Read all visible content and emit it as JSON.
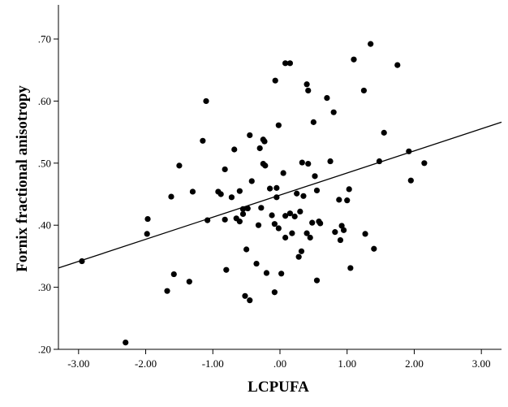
{
  "chart_data": {
    "type": "scatter",
    "title": "",
    "xlabel": "LCPUFA",
    "ylabel": "Fornix fractional anisotropy",
    "xlim": [
      -3.3,
      3.3
    ],
    "ylim": [
      0.2,
      0.755
    ],
    "x_ticks": [
      -3,
      -2,
      -1,
      0,
      1,
      2,
      3
    ],
    "x_tick_labels": [
      "-3.00",
      "-2.00",
      "-1.00",
      ".00",
      "1.00",
      "2.00",
      "3.00"
    ],
    "y_ticks": [
      0.2,
      0.3,
      0.4,
      0.5,
      0.6,
      0.7
    ],
    "y_tick_labels": [
      ".20",
      ".30",
      ".40",
      ".50",
      ".60",
      ".70"
    ],
    "grid": false,
    "legend": "none",
    "point_color": "#000000",
    "fit_line": {
      "type": "linear",
      "x": [
        -3.3,
        3.3
      ],
      "y": [
        0.331,
        0.566
      ]
    },
    "points": [
      [
        -2.95,
        0.342
      ],
      [
        -2.3,
        0.211
      ],
      [
        -1.97,
        0.41
      ],
      [
        -1.98,
        0.386
      ],
      [
        -1.68,
        0.294
      ],
      [
        -1.62,
        0.446
      ],
      [
        -1.58,
        0.321
      ],
      [
        -1.5,
        0.496
      ],
      [
        -1.35,
        0.309
      ],
      [
        -1.3,
        0.454
      ],
      [
        -1.15,
        0.536
      ],
      [
        -1.1,
        0.6
      ],
      [
        -1.08,
        0.408
      ],
      [
        -0.92,
        0.454
      ],
      [
        -0.88,
        0.45
      ],
      [
        -0.82,
        0.49
      ],
      [
        -0.82,
        0.409
      ],
      [
        -0.8,
        0.328
      ],
      [
        -0.72,
        0.445
      ],
      [
        -0.68,
        0.522
      ],
      [
        -0.65,
        0.411
      ],
      [
        -0.6,
        0.406
      ],
      [
        -0.6,
        0.455
      ],
      [
        -0.55,
        0.418
      ],
      [
        -0.55,
        0.426
      ],
      [
        -0.52,
        0.286
      ],
      [
        -0.5,
        0.361
      ],
      [
        -0.48,
        0.427
      ],
      [
        -0.45,
        0.279
      ],
      [
        -0.45,
        0.545
      ],
      [
        -0.42,
        0.471
      ],
      [
        -0.35,
        0.338
      ],
      [
        -0.32,
        0.4
      ],
      [
        -0.3,
        0.524
      ],
      [
        -0.28,
        0.428
      ],
      [
        -0.25,
        0.538
      ],
      [
        -0.25,
        0.499
      ],
      [
        -0.23,
        0.535
      ],
      [
        -0.22,
        0.496
      ],
      [
        -0.2,
        0.323
      ],
      [
        -0.15,
        0.459
      ],
      [
        -0.12,
        0.416
      ],
      [
        -0.08,
        0.292
      ],
      [
        -0.08,
        0.402
      ],
      [
        -0.07,
        0.633
      ],
      [
        -0.05,
        0.445
      ],
      [
        -0.05,
        0.46
      ],
      [
        -0.02,
        0.395
      ],
      [
        -0.02,
        0.561
      ],
      [
        0.02,
        0.322
      ],
      [
        0.05,
        0.484
      ],
      [
        0.08,
        0.415
      ],
      [
        0.08,
        0.38
      ],
      [
        0.08,
        0.661
      ],
      [
        0.15,
        0.661
      ],
      [
        0.15,
        0.419
      ],
      [
        0.18,
        0.387
      ],
      [
        0.22,
        0.414
      ],
      [
        0.25,
        0.451
      ],
      [
        0.28,
        0.349
      ],
      [
        0.3,
        0.422
      ],
      [
        0.32,
        0.358
      ],
      [
        0.33,
        0.501
      ],
      [
        0.35,
        0.447
      ],
      [
        0.4,
        0.387
      ],
      [
        0.4,
        0.627
      ],
      [
        0.42,
        0.617
      ],
      [
        0.42,
        0.499
      ],
      [
        0.45,
        0.38
      ],
      [
        0.48,
        0.404
      ],
      [
        0.5,
        0.566
      ],
      [
        0.52,
        0.479
      ],
      [
        0.55,
        0.456
      ],
      [
        0.55,
        0.311
      ],
      [
        0.58,
        0.406
      ],
      [
        0.6,
        0.403
      ],
      [
        0.7,
        0.605
      ],
      [
        0.75,
        0.503
      ],
      [
        0.8,
        0.582
      ],
      [
        0.82,
        0.389
      ],
      [
        0.88,
        0.441
      ],
      [
        0.9,
        0.376
      ],
      [
        0.92,
        0.399
      ],
      [
        0.95,
        0.392
      ],
      [
        1.0,
        0.44
      ],
      [
        1.03,
        0.458
      ],
      [
        1.05,
        0.331
      ],
      [
        1.1,
        0.667
      ],
      [
        1.25,
        0.617
      ],
      [
        1.27,
        0.386
      ],
      [
        1.35,
        0.692
      ],
      [
        1.4,
        0.362
      ],
      [
        1.48,
        0.503
      ],
      [
        1.55,
        0.549
      ],
      [
        1.75,
        0.658
      ],
      [
        1.92,
        0.519
      ],
      [
        1.95,
        0.472
      ],
      [
        2.15,
        0.5
      ]
    ]
  }
}
